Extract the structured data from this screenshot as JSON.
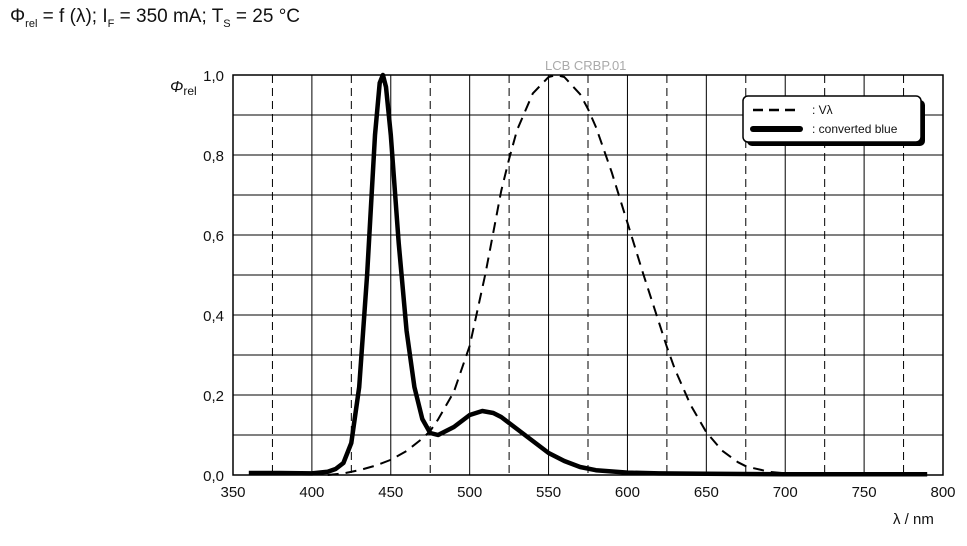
{
  "chart_data": {
    "type": "line",
    "title": {
      "main": "Φ",
      "sub1": "rel",
      "mid": " = f (λ); I",
      "sub2": "F",
      "mid2": " = 350 mA; T",
      "sub3": "S",
      "end": " = 25 °C"
    },
    "watermark": "LCB CRBP.01",
    "ylabel": {
      "main": "Φ",
      "sub": "rel"
    },
    "xlabel": "λ / nm",
    "xlim": [
      350,
      800
    ],
    "ylim": [
      0,
      1.0
    ],
    "xticks": [
      "350",
      "400",
      "450",
      "500",
      "550",
      "600",
      "650",
      "700",
      "750",
      "800"
    ],
    "yticks": [
      "0,0",
      "0,2",
      "0,4",
      "0,6",
      "0,8",
      "1,0"
    ],
    "grid": true,
    "legend_position": "top-right",
    "series": [
      {
        "name": ": Vλ",
        "style": "dashed",
        "color": "#000000",
        "x": [
          410,
          420,
          430,
          440,
          450,
          460,
          470,
          475,
          480,
          490,
          500,
          510,
          520,
          525,
          530,
          540,
          550,
          555,
          560,
          570,
          575,
          580,
          590,
          600,
          610,
          620,
          625,
          630,
          640,
          650,
          660,
          670,
          675,
          680,
          690,
          700
        ],
        "y": [
          0.0,
          0.004,
          0.012,
          0.023,
          0.038,
          0.06,
          0.091,
          0.11,
          0.139,
          0.208,
          0.323,
          0.503,
          0.71,
          0.79,
          0.862,
          0.954,
          0.995,
          1.0,
          0.995,
          0.952,
          0.915,
          0.87,
          0.757,
          0.631,
          0.503,
          0.381,
          0.32,
          0.265,
          0.175,
          0.107,
          0.061,
          0.032,
          0.022,
          0.017,
          0.008,
          0.004
        ]
      },
      {
        "name": ": converted blue",
        "style": "solid",
        "color": "#000000",
        "x": [
          360,
          380,
          400,
          410,
          415,
          420,
          425,
          430,
          435,
          440,
          443,
          445,
          447,
          450,
          455,
          460,
          465,
          470,
          475,
          480,
          490,
          500,
          508,
          515,
          520,
          530,
          540,
          550,
          560,
          570,
          580,
          600,
          620,
          650,
          700,
          750,
          790
        ],
        "y": [
          0.005,
          0.005,
          0.004,
          0.008,
          0.015,
          0.03,
          0.08,
          0.22,
          0.5,
          0.85,
          0.98,
          1.0,
          0.97,
          0.85,
          0.58,
          0.36,
          0.22,
          0.14,
          0.105,
          0.1,
          0.12,
          0.15,
          0.16,
          0.155,
          0.145,
          0.115,
          0.085,
          0.055,
          0.035,
          0.02,
          0.012,
          0.006,
          0.004,
          0.003,
          0.002,
          0.002,
          0.002
        ]
      }
    ]
  }
}
